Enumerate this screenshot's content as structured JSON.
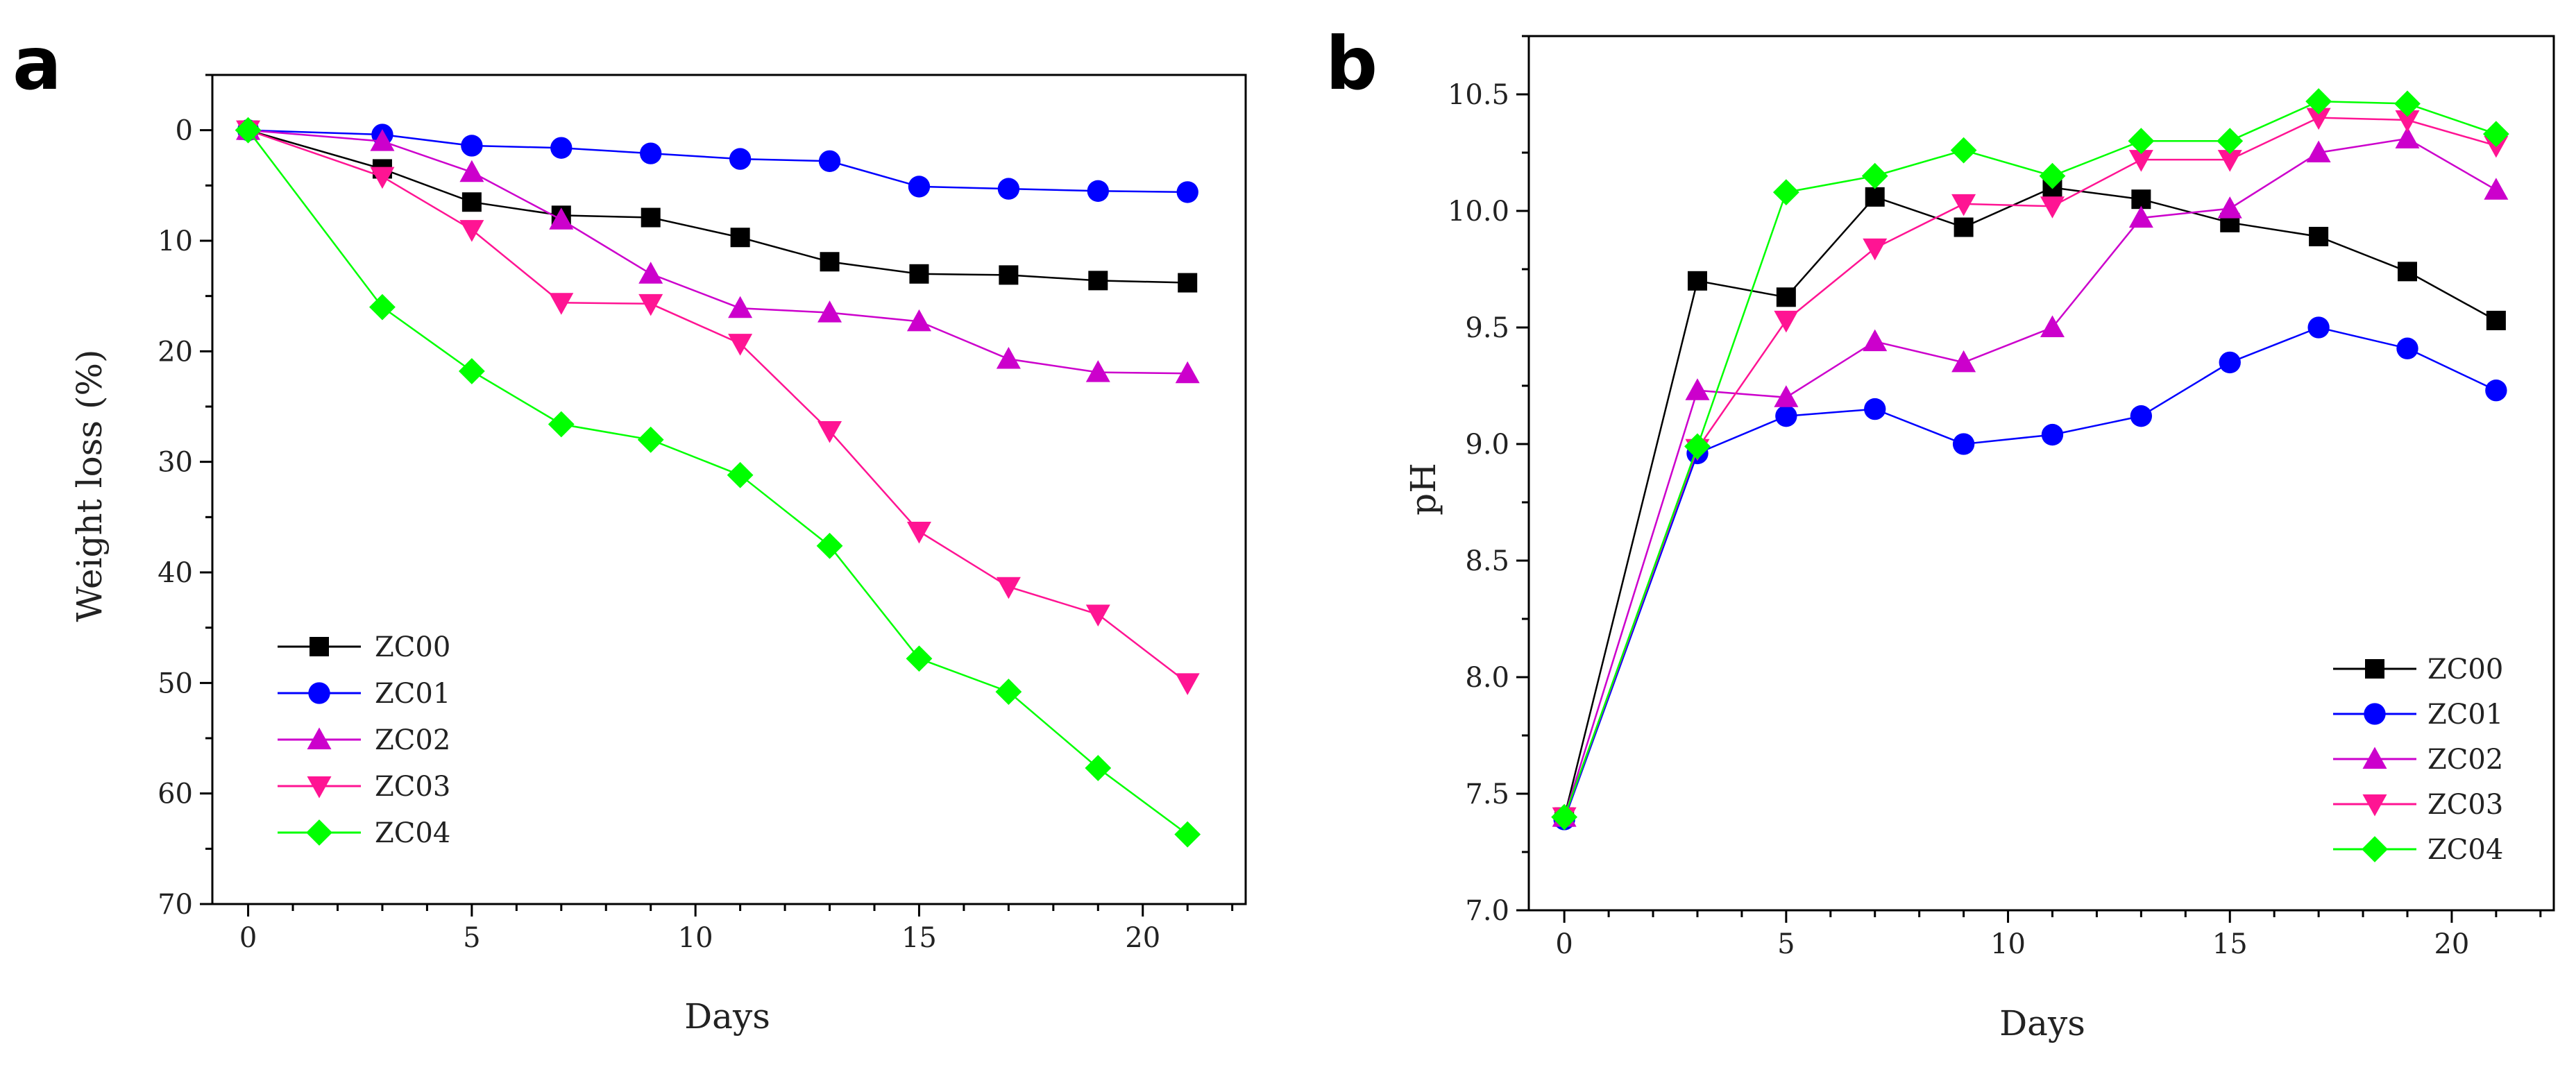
{
  "chart_data": [
    {
      "panel": "a",
      "type": "line",
      "title": "",
      "xlabel": "Days",
      "ylabel": "Weight loss (%)",
      "xlim": [
        -0.8,
        22.3
      ],
      "ylim": [
        -5,
        70
      ],
      "y_inverted": true,
      "x_ticks": [
        0,
        5,
        10,
        15,
        20
      ],
      "x_tick_labels": [
        "0",
        "5",
        "10",
        "15",
        "20"
      ],
      "y_ticks": [
        0,
        10,
        20,
        30,
        40,
        50,
        60,
        70
      ],
      "y_tick_labels": [
        "0",
        "10",
        "20",
        "30",
        "40",
        "50",
        "60",
        "70"
      ],
      "grid": false,
      "legend_position": "bottom-left",
      "x": [
        0,
        3,
        5,
        7,
        9,
        11,
        13,
        15,
        17,
        19,
        21
      ],
      "series": [
        {
          "name": "ZC00",
          "color": "#000000",
          "marker": "square",
          "values": [
            0,
            3.5,
            6.5,
            7.7,
            7.9,
            9.7,
            11.9,
            13.0,
            13.1,
            13.6,
            13.8
          ]
        },
        {
          "name": "ZC01",
          "color": "#0000ff",
          "marker": "circle",
          "values": [
            0,
            0.4,
            1.4,
            1.6,
            2.1,
            2.6,
            2.8,
            5.1,
            5.3,
            5.5,
            5.6
          ]
        },
        {
          "name": "ZC02",
          "color": "#cc00cc",
          "marker": "triangle-up",
          "values": [
            0,
            1.0,
            3.8,
            8.1,
            13.0,
            16.1,
            16.5,
            17.3,
            20.7,
            21.9,
            22.0
          ]
        },
        {
          "name": "ZC03",
          "color": "#ff1493",
          "marker": "triangle-down",
          "values": [
            0,
            4.2,
            9.0,
            15.6,
            15.7,
            19.3,
            27.2,
            36.3,
            41.3,
            43.8,
            50.0
          ]
        },
        {
          "name": "ZC04",
          "color": "#00ff00",
          "marker": "diamond",
          "values": [
            0,
            16.0,
            21.8,
            26.6,
            28.0,
            31.2,
            37.6,
            47.8,
            50.8,
            57.7,
            63.7
          ]
        }
      ]
    },
    {
      "panel": "b",
      "type": "line",
      "title": "",
      "xlabel": "Days",
      "ylabel": "pH",
      "xlim": [
        -0.8,
        22.3
      ],
      "ylim": [
        7.0,
        10.75
      ],
      "y_inverted": false,
      "x_ticks": [
        0,
        5,
        10,
        15,
        20
      ],
      "x_tick_labels": [
        "0",
        "5",
        "10",
        "15",
        "20"
      ],
      "y_ticks": [
        7.0,
        7.5,
        8.0,
        8.5,
        9.0,
        9.5,
        10.0,
        10.5
      ],
      "y_tick_labels": [
        "7.0",
        "7.5",
        "8.0",
        "8.5",
        "9.0",
        "9.5",
        "10.0",
        "10.5"
      ],
      "grid": false,
      "legend_position": "bottom-right",
      "x": [
        0,
        3,
        5,
        7,
        9,
        11,
        13,
        15,
        17,
        19,
        21
      ],
      "series": [
        {
          "name": "ZC00",
          "color": "#000000",
          "marker": "square",
          "values": [
            7.4,
            9.7,
            9.63,
            10.06,
            9.93,
            10.1,
            10.05,
            9.95,
            9.89,
            9.74,
            9.53
          ]
        },
        {
          "name": "ZC01",
          "color": "#0000ff",
          "marker": "circle",
          "values": [
            7.39,
            8.96,
            9.12,
            9.15,
            9.0,
            9.04,
            9.12,
            9.35,
            9.5,
            9.41,
            9.23
          ]
        },
        {
          "name": "ZC02",
          "color": "#cc00cc",
          "marker": "triangle-up",
          "values": [
            7.4,
            9.23,
            9.2,
            9.44,
            9.35,
            9.5,
            9.97,
            10.01,
            10.25,
            10.31,
            10.09
          ]
        },
        {
          "name": "ZC03",
          "color": "#ff1493",
          "marker": "triangle-down",
          "values": [
            7.4,
            8.98,
            9.53,
            9.84,
            10.03,
            10.02,
            10.22,
            10.22,
            10.4,
            10.39,
            10.28
          ]
        },
        {
          "name": "ZC04",
          "color": "#00ff00",
          "marker": "diamond",
          "values": [
            7.4,
            8.99,
            10.08,
            10.15,
            10.26,
            10.15,
            10.3,
            10.3,
            10.47,
            10.46,
            10.33
          ]
        }
      ]
    }
  ]
}
